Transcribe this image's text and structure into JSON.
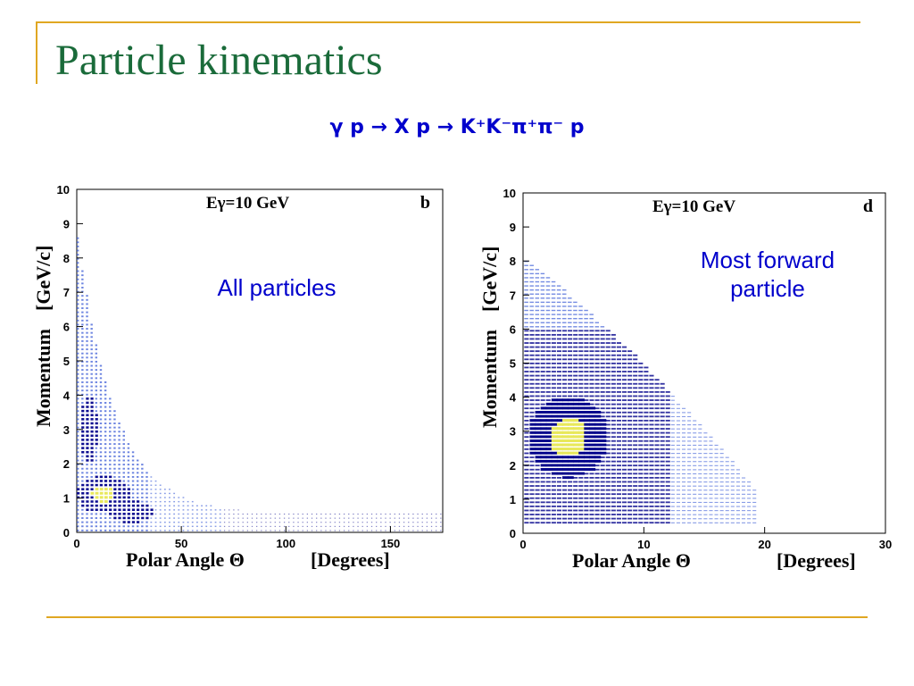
{
  "slide": {
    "title": "Particle kinematics",
    "reaction": "γ p  → X  p → K⁺K⁻π⁺π⁻ p"
  },
  "colors": {
    "accent": "#e0a722",
    "title": "#1a6b3a",
    "annotation": "#0000cc",
    "bins_low": "#00008b",
    "bins_mid": "#3b5bd6",
    "bins_high": "#e8e85a"
  },
  "chart_data": [
    {
      "type": "heatmap",
      "panel_label": "b",
      "energy_label": "Eγ=10 GeV",
      "annotation": "All particles",
      "xlabel": "Polar Angle Θ",
      "xunit": "[Degrees]",
      "ylabel": "Momentum",
      "yunit": "[GeV/c]",
      "xlim": [
        0,
        175
      ],
      "ylim": [
        0,
        10
      ],
      "xticks": [
        0,
        50,
        100,
        150
      ],
      "yticks": [
        0,
        1,
        2,
        3,
        4,
        5,
        6,
        7,
        8,
        9,
        10
      ],
      "grid": false,
      "hotspots": [
        {
          "x": 12,
          "y": 1.1,
          "level": "high"
        },
        {
          "x": 5,
          "y": 3.0,
          "level": "mid"
        },
        {
          "x": 25,
          "y": 0.6,
          "level": "mid"
        }
      ]
    },
    {
      "type": "heatmap",
      "panel_label": "d",
      "energy_label": "Eγ=10 GeV",
      "annotation": "Most forward particle",
      "xlabel": "Polar Angle Θ",
      "xunit": "[Degrees]",
      "ylabel": "Momentum",
      "yunit": "[GeV/c]",
      "xlim": [
        0,
        30
      ],
      "ylim": [
        0,
        10
      ],
      "xticks": [
        0,
        10,
        20,
        30
      ],
      "yticks": [
        0,
        1,
        2,
        3,
        4,
        5,
        6,
        7,
        8,
        9,
        10
      ],
      "grid": false,
      "hotspots": [
        {
          "x": 3.5,
          "y": 3.0,
          "level": "high"
        },
        {
          "x": 3,
          "y": 2.3,
          "level": "high"
        }
      ]
    }
  ]
}
